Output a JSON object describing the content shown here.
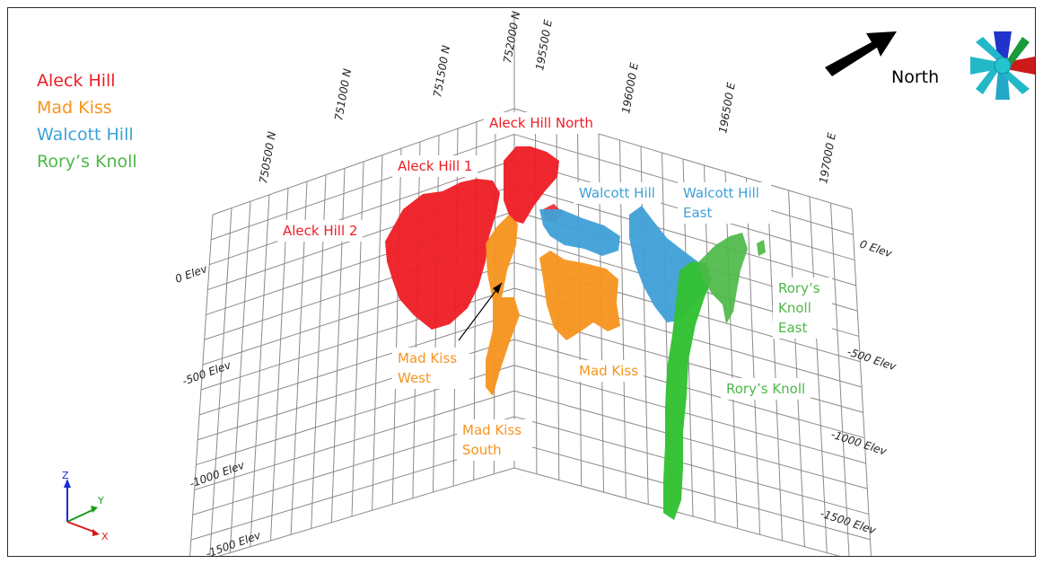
{
  "legend": [
    {
      "label": "Aleck Hill",
      "color": "#ee1c24"
    },
    {
      "label": "Mad Kiss",
      "color": "#f7941d"
    },
    {
      "label": "Walcott Hill",
      "color": "#3fa0d7"
    },
    {
      "label": "Rory’s Knoll",
      "color": "#4db848"
    }
  ],
  "north_label": "North",
  "deposit_labels": {
    "aleck_hill_north": "Aleck Hill North",
    "aleck_hill_1": "Aleck Hill 1",
    "aleck_hill_2": "Aleck Hill 2",
    "walcott_hill": "Walcott Hill",
    "walcott_hill_east": "Walcott Hill East",
    "rorys_knoll_east": "Rory’s Knoll East",
    "rorys_knoll": "Rory’s Knoll",
    "mad_kiss": "Mad Kiss",
    "mad_kiss_west": "Mad Kiss West",
    "mad_kiss_south": "Mad Kiss South"
  },
  "northing_ticks": [
    "750500 N",
    "751000 N",
    "751500 N",
    "752000 N"
  ],
  "easting_ticks": [
    "195500 E",
    "196000 E",
    "196500 E",
    "197000 E"
  ],
  "elev_ticks_left": [
    "0 Elev",
    "-500 Elev",
    "-1000 Elev",
    "-1500 Elev"
  ],
  "elev_ticks_right": [
    "0 Elev",
    "-500 Elev",
    "-1000 Elev",
    "-1500 Elev"
  ],
  "axis_triad": {
    "z": "Z",
    "y": "Y",
    "x": "X"
  },
  "colors": {
    "aleck": "#ee1c24",
    "madkiss": "#f7941d",
    "walcott": "#3fa0d7",
    "rory": "#4db848",
    "rory_body": "#33c133",
    "grid": "#8a8a8a"
  },
  "icons": [
    "north-arrow-icon",
    "orientation-widget-icon",
    "axis-triad-icon"
  ]
}
